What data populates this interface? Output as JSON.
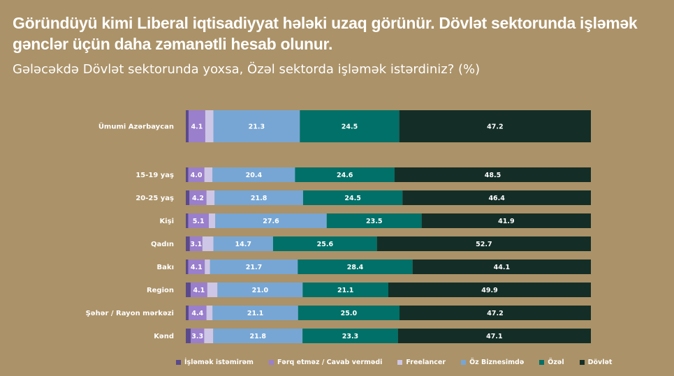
{
  "title": "Göründüyü kimi Liberal iqtisadiyyat hələki uzaq görünür. Dövlət sektorunda işləmək gənclər üçün daha zəmanətli hesab olunur.",
  "subtitle": "Gələcəkdə Dövlət sektorunda yoxsa, Özəl sektorda işləmək istərdiniz? (%)",
  "chart_data": {
    "type": "bar",
    "orientation": "horizontal",
    "stacked": true,
    "normalized": true,
    "categories": [
      "Ümumi Azərbaycan",
      "15-19 yaş",
      "20-25 yaş",
      "Kişi",
      "Qadın",
      "Bakı",
      "Region",
      "Şəhər / Rayon mərkəzi",
      "Kənd"
    ],
    "series": [
      {
        "name": "İşləmək istəmirəm",
        "color": "#5a4a8c",
        "values": [
          0.7,
          0.6,
          0.9,
          0.6,
          1.0,
          0.6,
          1.2,
          0.7,
          1.2
        ]
      },
      {
        "name": "Fərq etməz / Cavab vermədi",
        "color": "#9a7fcc",
        "values": [
          4.1,
          4.0,
          4.2,
          5.1,
          3.1,
          4.1,
          4.1,
          4.4,
          3.3
        ]
      },
      {
        "name": "Freelancer",
        "color": "#cdc6e6",
        "values": [
          2.0,
          2.0,
          2.0,
          1.6,
          2.7,
          1.3,
          2.5,
          1.5,
          2.2
        ]
      },
      {
        "name": "Öz Biznesimdə",
        "color": "#77a6d4",
        "values": [
          21.3,
          20.4,
          21.8,
          27.6,
          14.7,
          21.7,
          21.0,
          21.1,
          21.8
        ]
      },
      {
        "name": "Özəl",
        "color": "#007068",
        "values": [
          24.5,
          24.6,
          24.5,
          23.5,
          25.6,
          28.4,
          21.1,
          25.0,
          23.3
        ]
      },
      {
        "name": "Dövlət",
        "color": "#142e27",
        "values": [
          47.2,
          48.5,
          46.4,
          41.9,
          52.7,
          44.1,
          49.9,
          47.2,
          47.1
        ]
      }
    ],
    "labeled_series": [
      "Fərq etməz / Cavab vermədi",
      "Öz Biznesimdə",
      "Özəl",
      "Dövlət"
    ],
    "legend_position": "bottom",
    "grid": false
  },
  "legend": [
    {
      "label": "İşləmək istəmirəm",
      "color": "#5a4a8c"
    },
    {
      "label": "Fərq etməz / Cavab vermədi",
      "color": "#9a7fcc"
    },
    {
      "label": "Freelancer",
      "color": "#cdc6e6"
    },
    {
      "label": "Öz Biznesimdə",
      "color": "#77a6d4"
    },
    {
      "label": "Özəl",
      "color": "#007068"
    },
    {
      "label": "Dövlət",
      "color": "#142e27"
    }
  ]
}
